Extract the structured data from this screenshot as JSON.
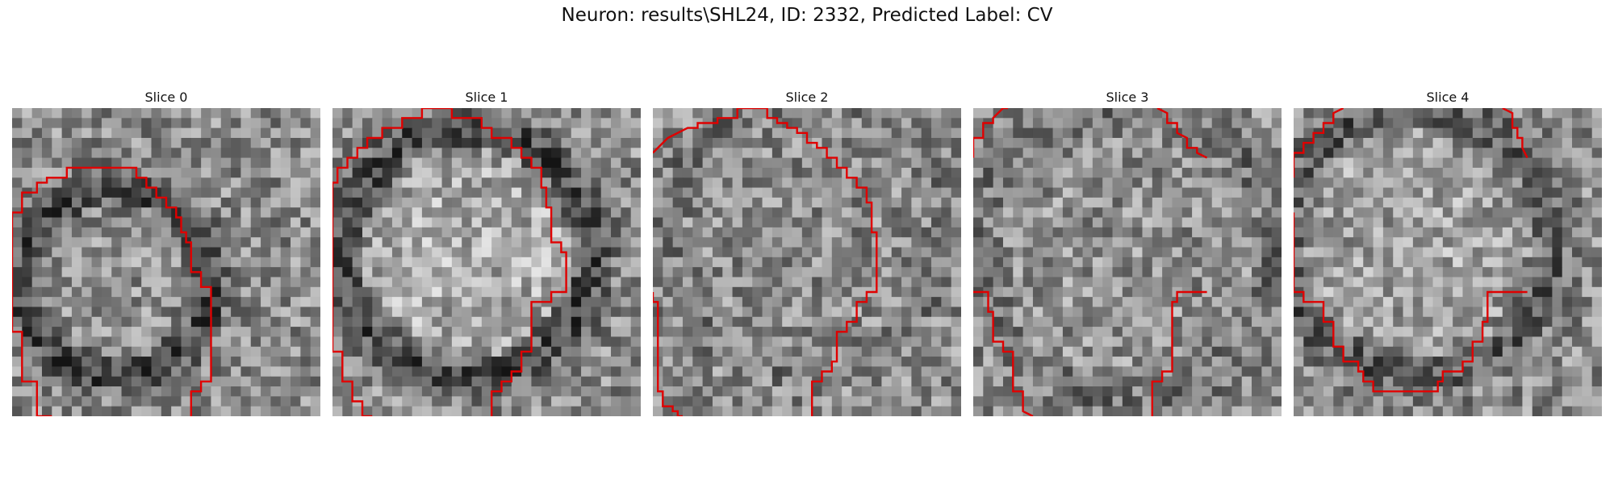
{
  "figure": {
    "title": "Neuron: results\\SHL24, ID: 2332, Predicted Label: CV",
    "contour_color": "#e00000"
  },
  "slices": [
    {
      "title": "Slice 0",
      "image": "grayscale-microscopy-patch",
      "contours": [
        [
          [
            3.5,
            31
          ],
          [
            2,
            30.5
          ],
          [
            2,
            27
          ],
          [
            0.5,
            27
          ],
          [
            0.5,
            22
          ],
          [
            -1,
            22
          ],
          [
            -1,
            10
          ],
          [
            0.5,
            10
          ],
          [
            0.5,
            8
          ],
          [
            2,
            8
          ],
          [
            2,
            7
          ],
          [
            3,
            7
          ],
          [
            3,
            6.5
          ],
          [
            5,
            6.5
          ],
          [
            5,
            5.5
          ],
          [
            12,
            5.5
          ],
          [
            12,
            6.5
          ],
          [
            13,
            6.5
          ],
          [
            13,
            7.5
          ],
          [
            14,
            7.5
          ],
          [
            14,
            8.5
          ],
          [
            15,
            8.5
          ],
          [
            15,
            9.5
          ],
          [
            16,
            9.5
          ],
          [
            16,
            10.5
          ],
          [
            16.5,
            10.5
          ],
          [
            16.5,
            12
          ],
          [
            17,
            12
          ],
          [
            17,
            13
          ],
          [
            17.5,
            13
          ],
          [
            17.5,
            16
          ],
          [
            18.5,
            16
          ],
          [
            18.5,
            17.5
          ],
          [
            19.5,
            17.5
          ],
          [
            19.5,
            27
          ],
          [
            18.5,
            27
          ],
          [
            18.5,
            28
          ],
          [
            17.5,
            28
          ],
          [
            17.5,
            30.5
          ]
        ]
      ]
    },
    {
      "title": "Slice 1",
      "image": "grayscale-microscopy-patch",
      "contours": [
        [
          [
            3.5,
            31
          ],
          [
            2.5,
            30.5
          ],
          [
            2.5,
            29
          ],
          [
            1.5,
            29
          ],
          [
            1.5,
            27
          ],
          [
            0.5,
            27
          ],
          [
            0.5,
            24
          ],
          [
            -1,
            24
          ],
          [
            -1,
            7
          ],
          [
            0,
            7
          ],
          [
            0,
            5.5
          ],
          [
            1,
            5.5
          ],
          [
            1,
            4.5
          ],
          [
            2,
            4.5
          ],
          [
            2,
            3.5
          ],
          [
            3,
            3.5
          ],
          [
            3,
            2.5
          ],
          [
            4.5,
            2.5
          ],
          [
            4.5,
            1.5
          ],
          [
            6.5,
            1.5
          ],
          [
            6.5,
            0.5
          ],
          [
            8.5,
            0.5
          ],
          [
            8.5,
            -0.5
          ],
          [
            11.5,
            -0.5
          ],
          [
            11.5,
            0.5
          ],
          [
            14.5,
            0.5
          ],
          [
            14.5,
            1.5
          ],
          [
            15.5,
            1.5
          ],
          [
            15.5,
            2.5
          ],
          [
            17.5,
            2.5
          ],
          [
            17.5,
            3.5
          ],
          [
            18.5,
            3.5
          ],
          [
            18.5,
            4.5
          ],
          [
            19.5,
            4.5
          ],
          [
            19.5,
            5.5
          ],
          [
            20.5,
            5.5
          ],
          [
            20.5,
            7.5
          ],
          [
            21,
            7.5
          ],
          [
            21,
            9.5
          ],
          [
            21.5,
            9.5
          ],
          [
            21.5,
            13
          ],
          [
            22.5,
            13
          ],
          [
            22.5,
            14
          ],
          [
            23,
            14
          ],
          [
            23,
            18
          ],
          [
            21.5,
            18
          ],
          [
            21.5,
            19
          ],
          [
            19.5,
            19
          ],
          [
            19.5,
            24
          ],
          [
            18.5,
            24
          ],
          [
            18.5,
            26
          ],
          [
            17.5,
            26
          ],
          [
            17.5,
            27
          ],
          [
            16.5,
            27
          ],
          [
            16.5,
            28
          ],
          [
            15.5,
            28
          ],
          [
            15.5,
            30.5
          ]
        ]
      ]
    },
    {
      "title": "Slice 2",
      "image": "grayscale-microscopy-patch",
      "contours": [
        [
          [
            -1,
            4
          ],
          [
            1,
            2.5
          ],
          [
            3,
            1.5
          ],
          [
            4,
            1.5
          ],
          [
            4,
            1
          ],
          [
            6,
            1
          ],
          [
            6,
            0.5
          ],
          [
            8,
            0.5
          ],
          [
            8,
            -0.5
          ],
          [
            11,
            -0.5
          ],
          [
            11,
            0.5
          ],
          [
            12,
            0.5
          ],
          [
            12,
            1
          ],
          [
            13,
            1
          ],
          [
            13,
            1.5
          ],
          [
            14,
            1.5
          ],
          [
            14,
            2
          ],
          [
            15,
            2
          ],
          [
            15,
            3
          ],
          [
            16,
            3
          ],
          [
            16,
            3.5
          ],
          [
            17,
            3.5
          ],
          [
            17,
            4.5
          ],
          [
            18,
            4.5
          ],
          [
            18,
            5.5
          ],
          [
            19,
            5.5
          ],
          [
            19,
            6.5
          ],
          [
            20,
            6.5
          ],
          [
            20,
            7.5
          ],
          [
            21,
            7.5
          ],
          [
            21,
            9
          ],
          [
            21.5,
            9
          ],
          [
            21.5,
            12
          ],
          [
            22,
            12
          ],
          [
            22,
            18
          ],
          [
            21,
            18
          ],
          [
            21,
            19
          ],
          [
            20,
            19
          ],
          [
            20,
            21
          ],
          [
            19,
            21
          ],
          [
            19,
            22
          ],
          [
            18,
            22
          ],
          [
            18,
            25
          ],
          [
            17.5,
            25
          ],
          [
            17.5,
            26
          ],
          [
            16.5,
            26
          ],
          [
            16.5,
            27
          ],
          [
            15.5,
            27
          ],
          [
            15.5,
            30.5
          ]
        ],
        [
          [
            -1,
            18
          ],
          [
            -0.5,
            18
          ],
          [
            -0.5,
            19
          ],
          [
            0,
            19
          ],
          [
            0,
            28
          ],
          [
            0.5,
            28
          ],
          [
            0.5,
            29.5
          ],
          [
            1.5,
            29.5
          ],
          [
            1.5,
            30
          ],
          [
            2,
            30
          ],
          [
            2,
            30.5
          ],
          [
            2.5,
            31
          ]
        ]
      ]
    },
    {
      "title": "Slice 3",
      "image": "grayscale-microscopy-patch",
      "contours": [
        [
          [
            -1,
            4.5
          ],
          [
            -0.5,
            3.5
          ],
          [
            -0.5,
            2.5
          ],
          [
            0.5,
            2.5
          ],
          [
            0.5,
            1
          ],
          [
            1.5,
            1
          ],
          [
            1.5,
            0.5
          ],
          [
            2.5,
            -0.5
          ],
          [
            3,
            -1
          ]
        ],
        [
          [
            18,
            -1
          ],
          [
            19,
            0
          ],
          [
            19,
            1
          ],
          [
            20,
            1
          ],
          [
            20,
            2
          ],
          [
            21,
            2.5
          ],
          [
            21,
            3.5
          ],
          [
            22,
            3.5
          ],
          [
            22,
            4
          ],
          [
            23,
            4.5
          ]
        ],
        [
          [
            -1,
            18
          ],
          [
            1,
            18
          ],
          [
            1,
            20
          ],
          [
            1.5,
            20
          ],
          [
            1.5,
            23
          ],
          [
            2.5,
            23
          ],
          [
            2.5,
            24
          ],
          [
            3.5,
            24
          ],
          [
            3.5,
            28
          ],
          [
            4.5,
            28
          ],
          [
            4.5,
            30
          ],
          [
            5.5,
            30.5
          ]
        ],
        [
          [
            23,
            18
          ],
          [
            20,
            18
          ],
          [
            20,
            19
          ],
          [
            19.5,
            19
          ],
          [
            19.5,
            26
          ],
          [
            18.5,
            26
          ],
          [
            18.5,
            27
          ],
          [
            17.5,
            27
          ],
          [
            17.5,
            30.5
          ]
        ]
      ]
    },
    {
      "title": "Slice 4",
      "image": "grayscale-microscopy-patch",
      "contours": [
        [
          [
            -1,
            6.5
          ],
          [
            -0.5,
            5.5
          ],
          [
            -0.5,
            4
          ],
          [
            0.5,
            4
          ],
          [
            0.5,
            3
          ],
          [
            1.5,
            3
          ],
          [
            1.5,
            2
          ],
          [
            2.5,
            2
          ],
          [
            2.5,
            1
          ],
          [
            3.5,
            1
          ],
          [
            3.5,
            0
          ],
          [
            4.5,
            -1
          ]
        ],
        [
          [
            20.5,
            -1
          ],
          [
            21.5,
            0
          ],
          [
            21.5,
            1.5
          ],
          [
            22,
            1.5
          ],
          [
            22,
            2.5
          ],
          [
            22.5,
            2.5
          ],
          [
            22.5,
            3.5
          ],
          [
            23,
            4.5
          ]
        ],
        [
          [
            -1,
            10
          ],
          [
            -0.5,
            10
          ],
          [
            -0.5,
            18
          ],
          [
            0.5,
            18
          ],
          [
            0.5,
            19
          ],
          [
            2.5,
            19
          ],
          [
            2.5,
            21
          ],
          [
            3.5,
            21
          ],
          [
            3.5,
            23.5
          ],
          [
            4.5,
            23.5
          ],
          [
            4.5,
            25
          ],
          [
            6,
            25
          ],
          [
            6,
            26
          ],
          [
            6.5,
            26
          ],
          [
            6.5,
            27
          ],
          [
            7.5,
            27
          ],
          [
            7.5,
            28
          ],
          [
            14,
            28
          ],
          [
            14,
            27
          ],
          [
            14.5,
            27
          ],
          [
            14.5,
            26
          ],
          [
            16.5,
            26
          ],
          [
            16.5,
            25
          ],
          [
            17.5,
            25
          ],
          [
            17.5,
            23
          ],
          [
            18.5,
            23
          ],
          [
            18.5,
            21
          ],
          [
            19,
            21
          ],
          [
            19,
            18
          ],
          [
            23,
            18
          ]
        ]
      ]
    }
  ]
}
